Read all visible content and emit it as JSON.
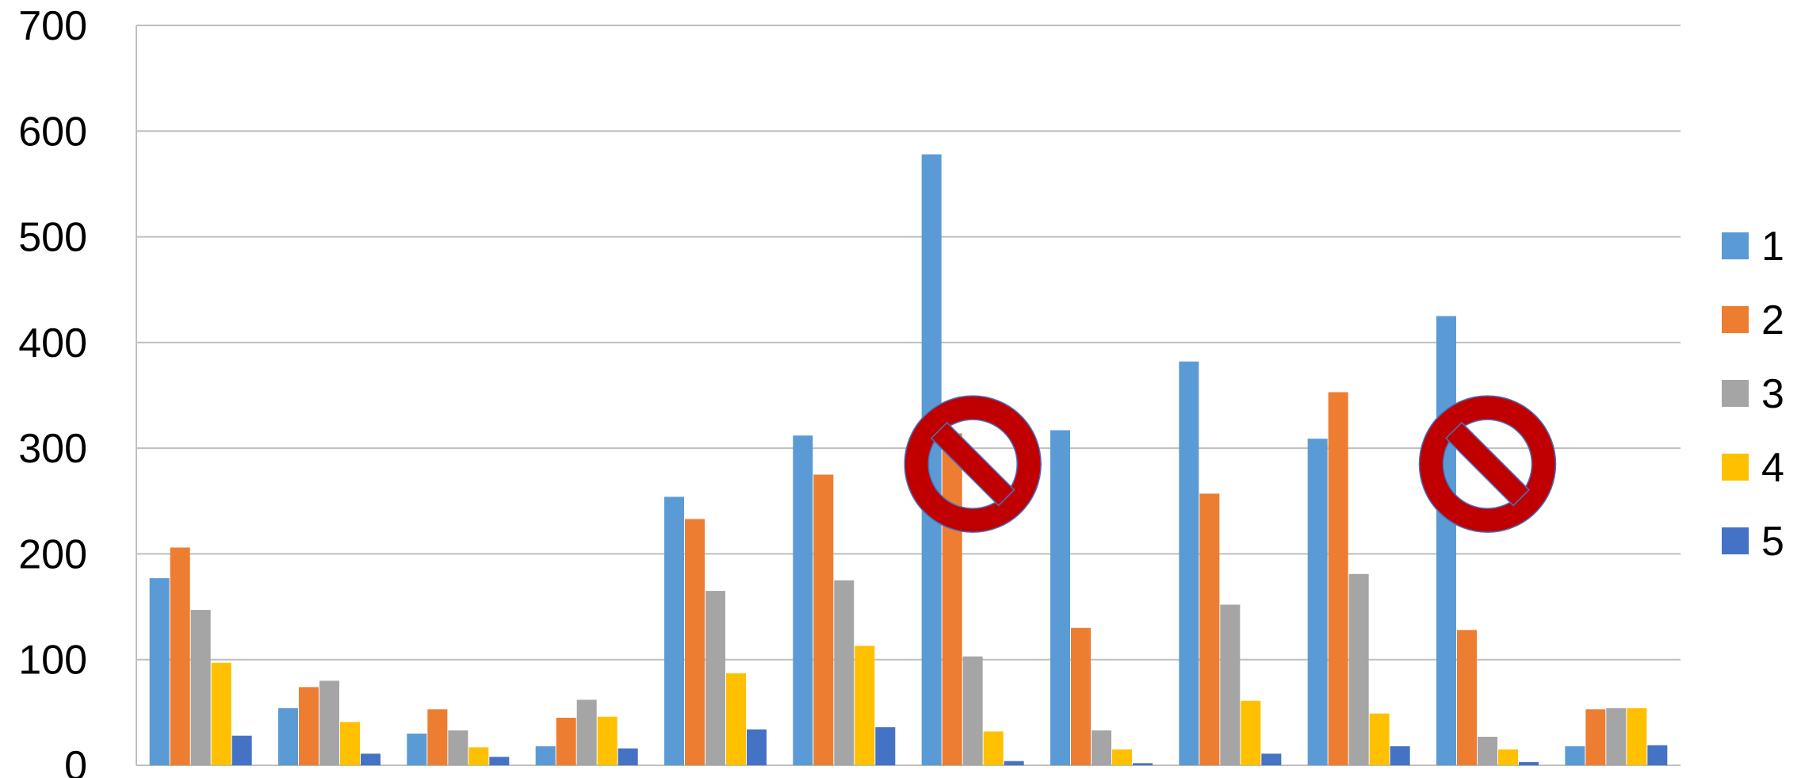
{
  "chart_data": {
    "type": "bar",
    "title": "",
    "xlabel": "",
    "ylabel": "",
    "ylim": [
      0,
      700
    ],
    "yticks": [
      0,
      100,
      200,
      300,
      400,
      500,
      600,
      700
    ],
    "ytick_labels": [
      "0",
      "100",
      "200",
      "300",
      "400",
      "500",
      "600",
      "700"
    ],
    "grid": true,
    "legend": "right",
    "categories": [
      "",
      "",
      "",
      "",
      "",
      "",
      "",
      "",
      "",
      "",
      "",
      ""
    ],
    "series": [
      {
        "name": "1",
        "color": "#5B9BD5",
        "values": [
          177,
          54,
          30,
          18,
          254,
          312,
          578,
          317,
          382,
          309,
          425,
          18
        ]
      },
      {
        "name": "2",
        "color": "#ED7D31",
        "values": [
          206,
          74,
          53,
          45,
          233,
          275,
          314,
          130,
          257,
          353,
          128,
          53
        ]
      },
      {
        "name": "3",
        "color": "#A5A5A5",
        "values": [
          147,
          80,
          33,
          62,
          165,
          175,
          103,
          33,
          152,
          181,
          27,
          54
        ]
      },
      {
        "name": "4",
        "color": "#FFC000",
        "values": [
          97,
          41,
          17,
          46,
          87,
          113,
          32,
          15,
          61,
          49,
          15,
          54
        ]
      },
      {
        "name": "5",
        "color": "#4472C4",
        "values": [
          28,
          11,
          8,
          16,
          34,
          36,
          4,
          2,
          11,
          18,
          3,
          19
        ]
      }
    ],
    "annotations": [
      {
        "type": "prohibition-icon",
        "category_index": 6,
        "y_value": 285
      },
      {
        "type": "prohibition-icon",
        "category_index": 10,
        "y_value": 285
      }
    ]
  },
  "colors": {
    "gridline": "#BFBFBF",
    "axis": "#BFBFBF",
    "prohibition_fill": "#C00000",
    "prohibition_stroke": "#4472C4"
  }
}
